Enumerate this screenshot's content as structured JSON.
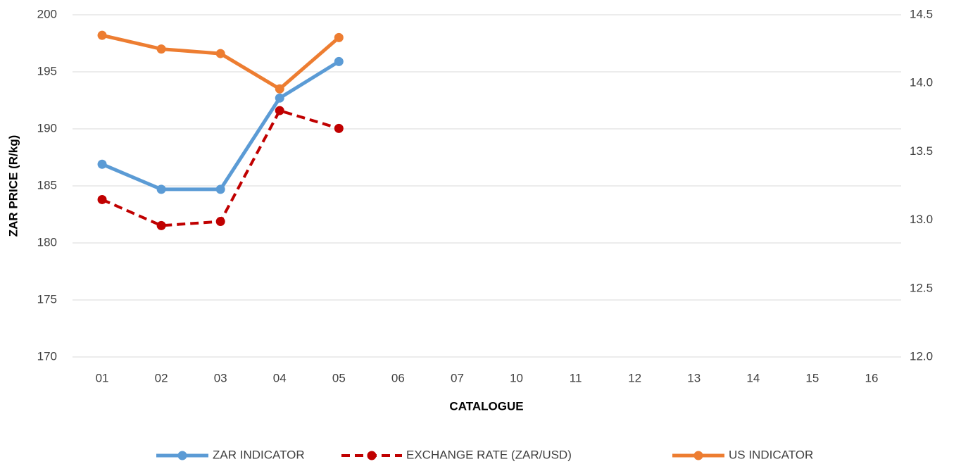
{
  "chart_data": {
    "type": "line",
    "xlabel": "CATALOGUE",
    "ylabel": "ZAR PRICE (R/kg)",
    "categories": [
      "01",
      "02",
      "03",
      "04",
      "05",
      "06",
      "07",
      "10",
      "11",
      "12",
      "13",
      "14",
      "15",
      "16"
    ],
    "series": [
      {
        "name": "ZAR INDICATOR",
        "color": "#5b9bd5",
        "dashed": false,
        "axis": "y",
        "values": [
          186.9,
          184.7,
          184.7,
          192.7,
          195.9,
          null,
          null,
          null,
          null,
          null,
          null,
          null,
          null,
          null
        ]
      },
      {
        "name": "EXCHANGE RATE (ZAR/USD)",
        "color": "#c00000",
        "dashed": true,
        "axis": "y2",
        "values": [
          13.15,
          12.96,
          12.99,
          13.8,
          13.67,
          null,
          null,
          null,
          null,
          null,
          null,
          null,
          null,
          null
        ]
      },
      {
        "name": "US INDICATOR",
        "color": "#ed7d31",
        "dashed": false,
        "axis": "y",
        "values": [
          198.2,
          197.0,
          196.6,
          193.5,
          198.0,
          null,
          null,
          null,
          null,
          null,
          null,
          null,
          null,
          null
        ]
      }
    ],
    "ylim": [
      170,
      200
    ],
    "yticks": [
      170,
      175,
      180,
      185,
      190,
      195,
      200
    ],
    "y2lim": [
      12.0,
      14.5
    ],
    "y2ticks": [
      {
        "value": 12.0,
        "label": "12.0"
      },
      12.5,
      {
        "value": 13.0,
        "label": "13.0"
      },
      13.5,
      {
        "value": 14.0,
        "label": "14.0"
      },
      14.5
    ],
    "grid": true,
    "legend": "bottom"
  }
}
